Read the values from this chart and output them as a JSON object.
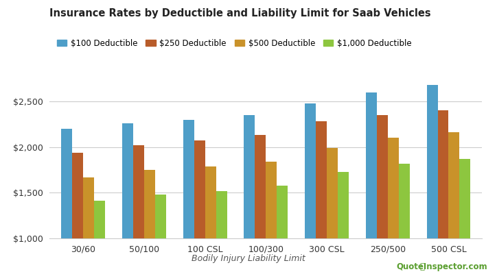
{
  "title": "Insurance Rates by Deductible and Liability Limit for Saab Vehicles",
  "xlabel": "Bodily Injury Liability Limit",
  "categories": [
    "30/60",
    "50/100",
    "100 CSL",
    "100/300",
    "300 CSL",
    "250/500",
    "500 CSL"
  ],
  "series": {
    "$100 Deductible": [
      2200,
      2260,
      2300,
      2350,
      2480,
      2600,
      2680
    ],
    "$250 Deductible": [
      1940,
      2020,
      2070,
      2130,
      2280,
      2350,
      2400
    ],
    "$500 Deductible": [
      1670,
      1750,
      1790,
      1840,
      1990,
      2100,
      2160
    ],
    "$1,000 Deductible": [
      1410,
      1480,
      1520,
      1580,
      1730,
      1820,
      1870
    ]
  },
  "colors": {
    "$100 Deductible": "#4e9ec8",
    "$250 Deductible": "#b85c2a",
    "$500 Deductible": "#c9922a",
    "$1,000 Deductible": "#8dc63f"
  },
  "ylim": [
    1000,
    2800
  ],
  "yticks": [
    1000,
    1500,
    2000,
    2500
  ],
  "ytick_labels": [
    "$1,000",
    "$1,500",
    "$2,000",
    "$2,500"
  ],
  "background_color": "#ffffff",
  "grid_color": "#cccccc",
  "bar_width": 0.18,
  "legend_labels": [
    "$100 Deductible",
    "$250 Deductible",
    "$500 Deductible",
    "$1,000 Deductible"
  ],
  "watermark": "QuoteInspector.com"
}
